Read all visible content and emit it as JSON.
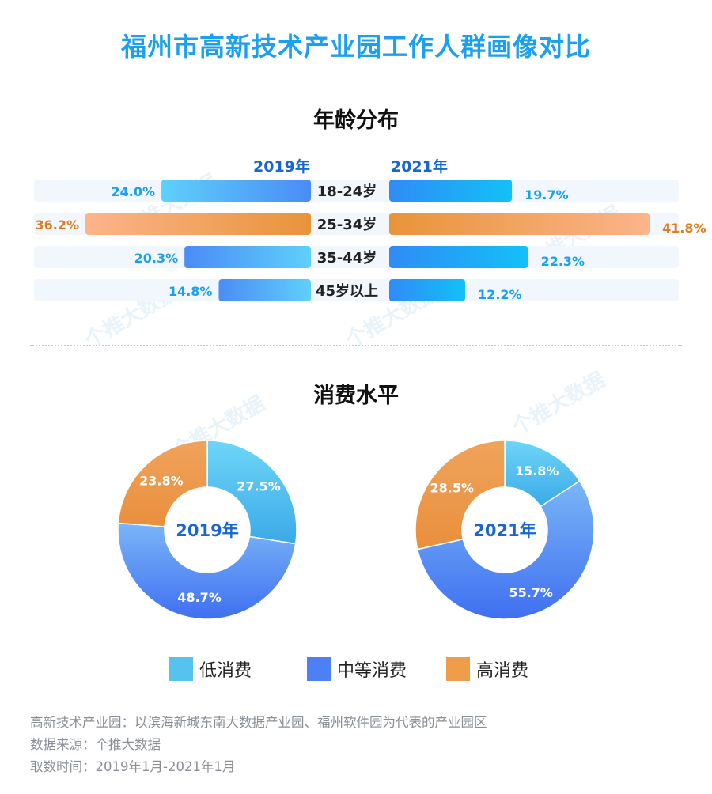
{
  "title": "福州市高新技术产业园工作人群画像对比",
  "age_section": {
    "title": "年龄分布",
    "left_year": "2019年",
    "right_year": "2021年"
  },
  "spend_section": {
    "title": "消费水平"
  },
  "watermark": "个推大数据",
  "colors": {
    "title": "#1aa0f0",
    "bar_left_start": "#4a8cf5",
    "bar_left_end": "#5fd0fb",
    "bar_right_start": "#2f8cf6",
    "bar_right_end": "#13c0f7",
    "bar_highlight_left_start": "#fcb48a",
    "bar_highlight_left_end": "#e8943a",
    "label_blue": "#1aa0f0",
    "label_orange": "#e07b1f",
    "low": "#56c3ef",
    "mid": "#4c80f3",
    "high": "#ee9d4a"
  },
  "chart_data": [
    {
      "type": "bar",
      "title": "年龄分布",
      "categories": [
        "18-24岁",
        "25-34岁",
        "35-44岁",
        "45岁以上"
      ],
      "series": [
        {
          "name": "2019年",
          "values": [
            24.0,
            36.2,
            20.3,
            14.8
          ]
        },
        {
          "name": "2021年",
          "values": [
            19.7,
            41.8,
            22.3,
            12.2
          ]
        }
      ],
      "value_labels": {
        "2019年": [
          "24.0%",
          "36.2%",
          "20.3%",
          "14.8%"
        ],
        "2021年": [
          "19.7%",
          "41.8%",
          "22.3%",
          "12.2%"
        ]
      },
      "highlight_category": "25-34岁",
      "orientation": "horizontal-butterfly"
    },
    {
      "type": "pie",
      "center_label": "2019年",
      "categories": [
        "低消费",
        "中等消费",
        "高消费"
      ],
      "values": [
        27.5,
        48.7,
        23.8
      ],
      "value_labels": [
        "27.5%",
        "48.7%",
        "23.8%"
      ]
    },
    {
      "type": "pie",
      "center_label": "2021年",
      "categories": [
        "低消费",
        "中等消费",
        "高消费"
      ],
      "values": [
        15.8,
        55.7,
        28.5
      ],
      "value_labels": [
        "15.8%",
        "55.7%",
        "28.5%"
      ]
    }
  ],
  "legend": [
    {
      "label": "低消费",
      "color": "#56c3ef"
    },
    {
      "label": "中等消费",
      "color": "#4c80f3"
    },
    {
      "label": "高消费",
      "color": "#ee9d4a"
    }
  ],
  "notes": [
    "高新技术产业园：以滨海新城东南大数据产业园、福州软件园为代表的产业园区",
    "数据来源：个推大数据",
    "取数时间：2019年1月-2021年1月"
  ]
}
